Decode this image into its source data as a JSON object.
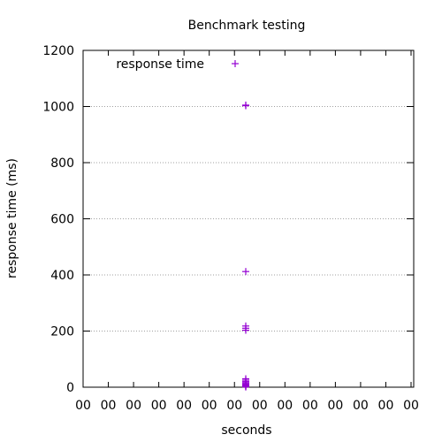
{
  "chart_data": {
    "type": "scatter",
    "title": "Benchmark testing",
    "xlabel": "seconds",
    "ylabel": "response time (ms)",
    "ylim": [
      0,
      1200
    ],
    "yticks": [
      0,
      200,
      400,
      600,
      800,
      1000,
      1200
    ],
    "xtick_labels": [
      "00",
      "00",
      "00",
      "00",
      "00",
      "00",
      "00",
      "00",
      "00",
      "00",
      "00",
      "00",
      "00",
      "00"
    ],
    "grid": "horizontal dotted",
    "legend_placement": "top-left",
    "marker": "+",
    "series": [
      {
        "name": "response time",
        "color": "#9400d3",
        "points_y": [
          1005,
          1003,
          412,
          218,
          210,
          203,
          30,
          25,
          20,
          16,
          12,
          9,
          6,
          4,
          2,
          1
        ]
      }
    ]
  }
}
